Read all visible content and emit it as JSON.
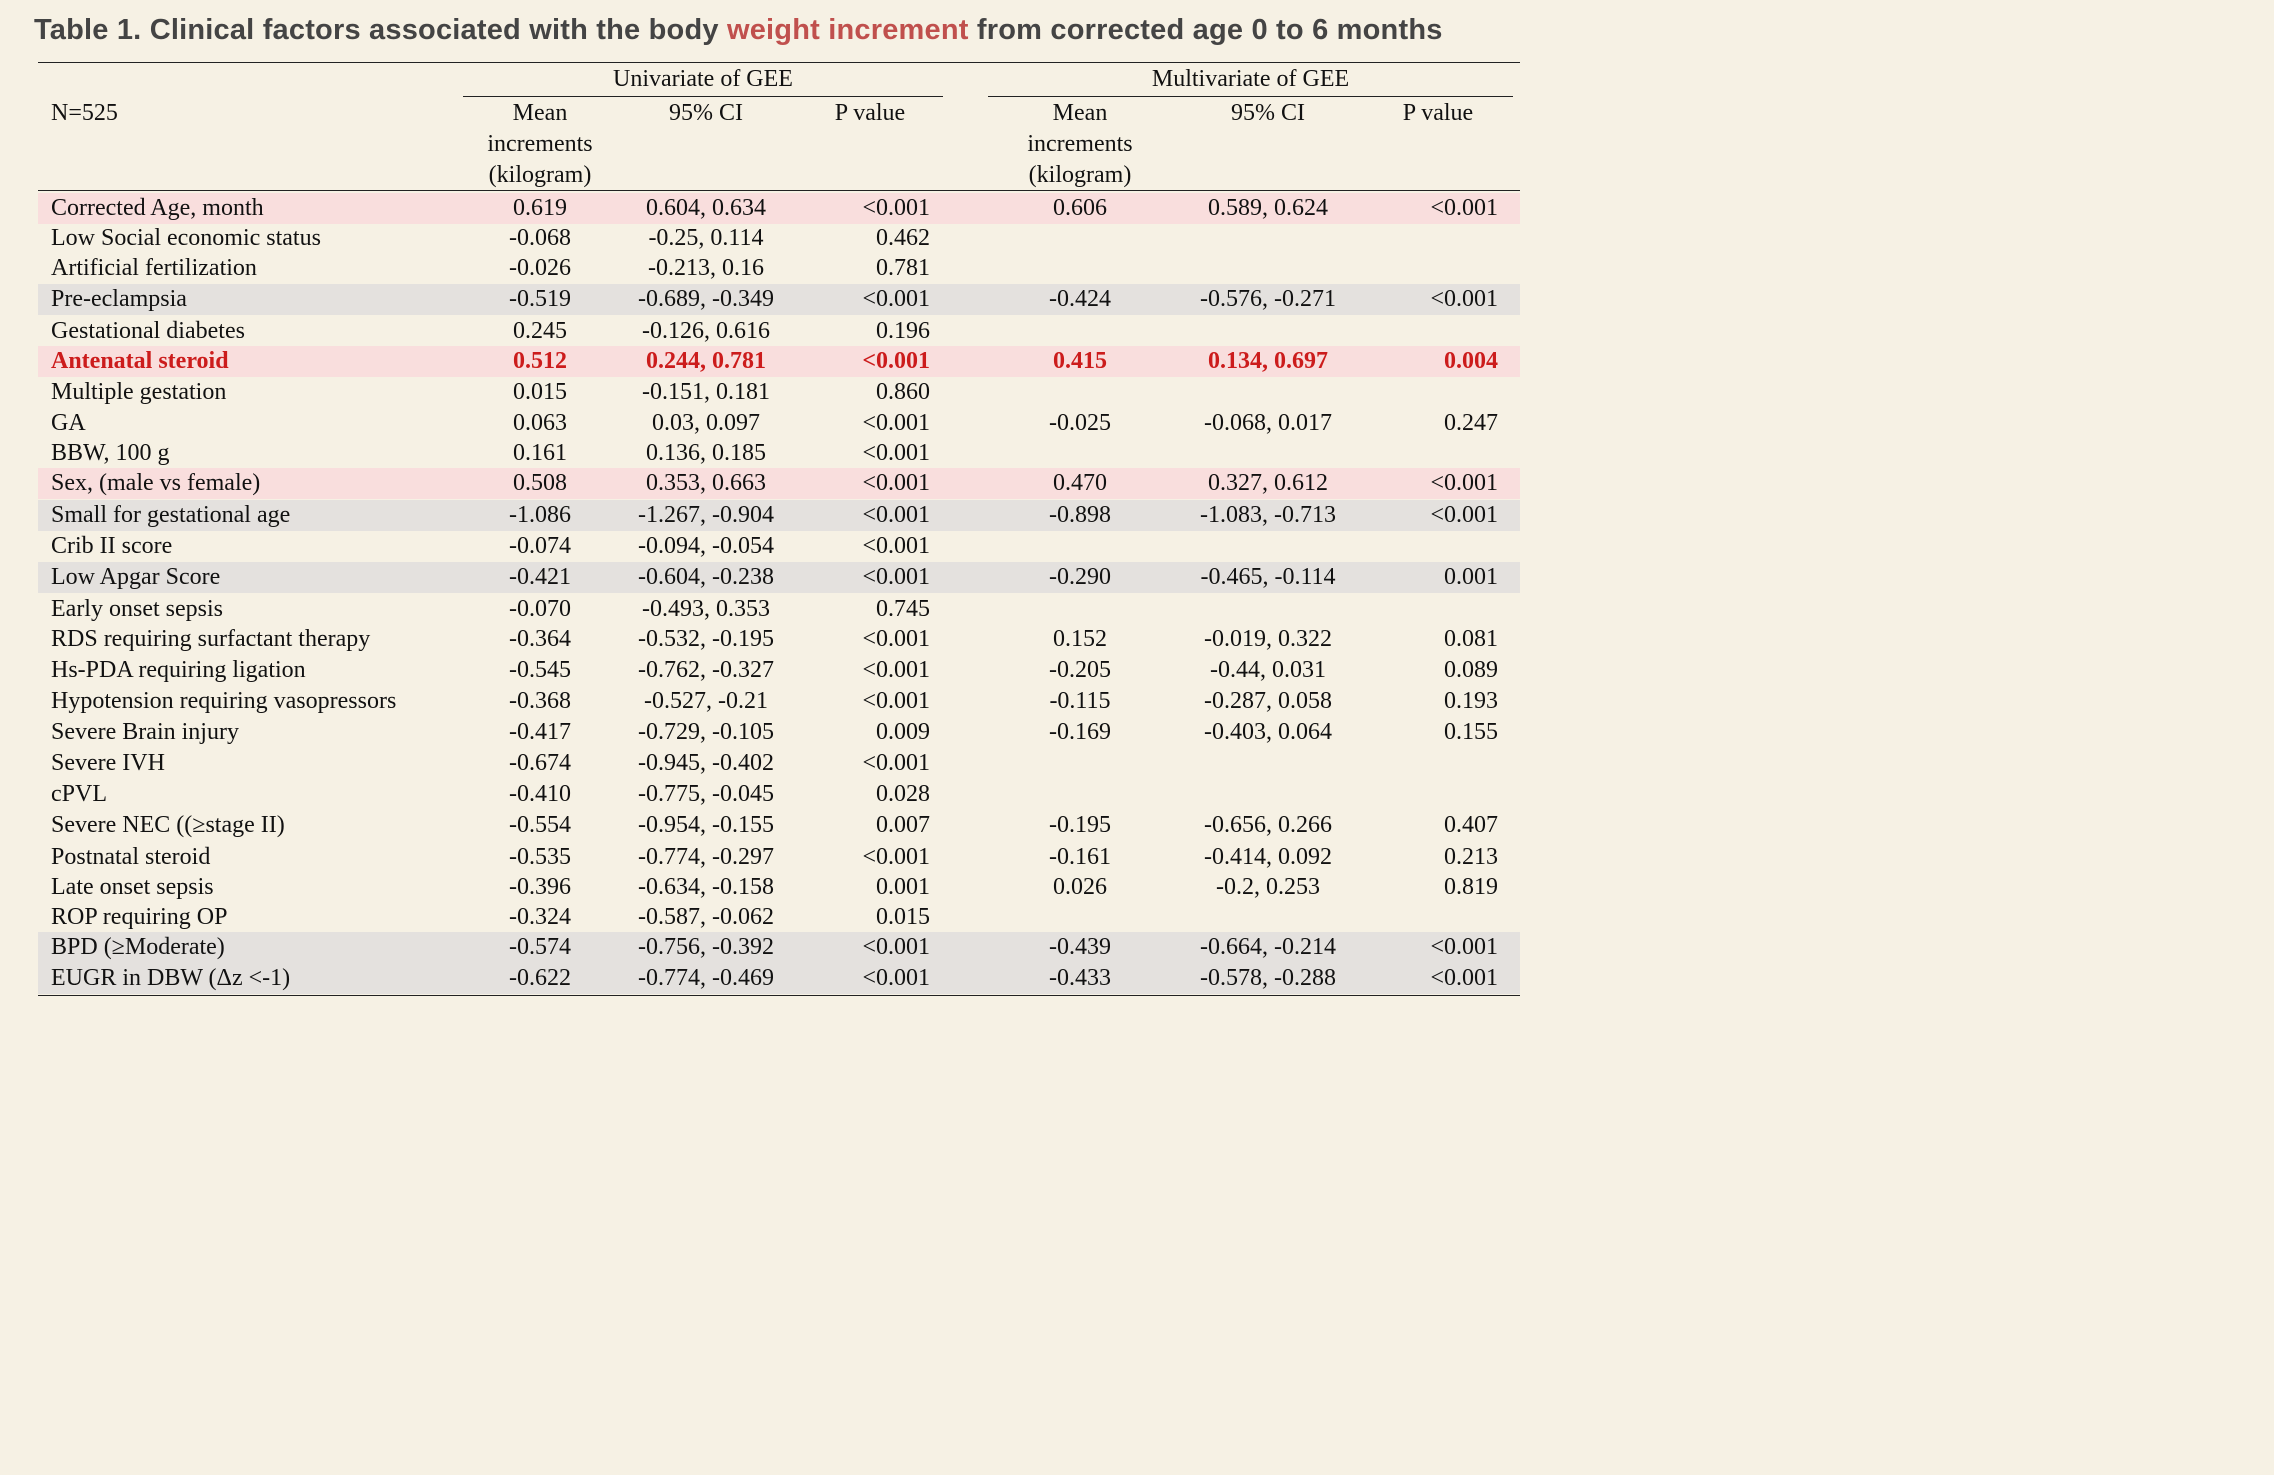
{
  "title": {
    "prefix": "Table 1. Clinical factors associated with the body ",
    "highlight": "weight increment",
    "suffix": " from corrected age 0 to 6 months"
  },
  "colors": {
    "highlight": "#c0504d",
    "pink_row": "#f9dedd",
    "gray_row": "#e4e1de",
    "bold_row": "#cc1c1c"
  },
  "header": {
    "n_label": "N=525",
    "univariate": "Univariate of GEE",
    "multivariate": "Multivariate of GEE",
    "mean": [
      "Mean",
      "increments",
      "(kilogram)"
    ],
    "ci": "95% CI",
    "p": "P value"
  },
  "rows": [
    {
      "label": "Corrected Age, month",
      "u_mean": "0.619",
      "u_ci": "0.604, 0.634",
      "u_p": "<0.001",
      "m_mean": "0.606",
      "m_ci": "0.589, 0.624",
      "m_p": "<0.001",
      "style": "pink"
    },
    {
      "label": "Low Social economic status",
      "u_mean": "-0.068",
      "u_ci": "-0.25, 0.114",
      "u_p": "0.462",
      "m_mean": "",
      "m_ci": "",
      "m_p": "",
      "style": ""
    },
    {
      "label": "Artificial fertilization",
      "u_mean": "-0.026",
      "u_ci": "-0.213, 0.16",
      "u_p": "0.781",
      "m_mean": "",
      "m_ci": "",
      "m_p": "",
      "style": ""
    },
    {
      "label": "Pre-eclampsia",
      "u_mean": "-0.519",
      "u_ci": "-0.689, -0.349",
      "u_p": "<0.001",
      "m_mean": "-0.424",
      "m_ci": "-0.576, -0.271",
      "m_p": "<0.001",
      "style": "gray"
    },
    {
      "label": "Gestational diabetes",
      "u_mean": "0.245",
      "u_ci": "-0.126, 0.616",
      "u_p": "0.196",
      "m_mean": "",
      "m_ci": "",
      "m_p": "",
      "style": ""
    },
    {
      "label": "Antenatal steroid",
      "u_mean": "0.512",
      "u_ci": "0.244, 0.781",
      "u_p": "<0.001",
      "m_mean": "0.415",
      "m_ci": "0.134, 0.697",
      "m_p": "0.004",
      "style": "pink bold"
    },
    {
      "label": "Multiple gestation",
      "u_mean": "0.015",
      "u_ci": "-0.151, 0.181",
      "u_p": "0.860",
      "m_mean": "",
      "m_ci": "",
      "m_p": "",
      "style": ""
    },
    {
      "label": "GA",
      "u_mean": "0.063",
      "u_ci": "0.03, 0.097",
      "u_p": "<0.001",
      "m_mean": "-0.025",
      "m_ci": "-0.068, 0.017",
      "m_p": "0.247",
      "style": ""
    },
    {
      "label": "BBW, 100 g",
      "u_mean": "0.161",
      "u_ci": "0.136, 0.185",
      "u_p": "<0.001",
      "m_mean": "",
      "m_ci": "",
      "m_p": "",
      "style": ""
    },
    {
      "label": "Sex, (male vs female)",
      "u_mean": "0.508",
      "u_ci": "0.353, 0.663",
      "u_p": "<0.001",
      "m_mean": "0.470",
      "m_ci": "0.327, 0.612",
      "m_p": "<0.001",
      "style": "pink"
    },
    {
      "label": "Small for gestational age",
      "u_mean": "-1.086",
      "u_ci": "-1.267, -0.904",
      "u_p": "<0.001",
      "m_mean": "-0.898",
      "m_ci": "-1.083, -0.713",
      "m_p": "<0.001",
      "style": "gray"
    },
    {
      "label": "Crib II score",
      "u_mean": "-0.074",
      "u_ci": "-0.094, -0.054",
      "u_p": "<0.001",
      "m_mean": "",
      "m_ci": "",
      "m_p": "",
      "style": ""
    },
    {
      "label": "Low Apgar Score",
      "u_mean": "-0.421",
      "u_ci": "-0.604, -0.238",
      "u_p": "<0.001",
      "m_mean": "-0.290",
      "m_ci": "-0.465, -0.114",
      "m_p": "0.001",
      "style": "gray"
    },
    {
      "label": "Early onset sepsis",
      "u_mean": "-0.070",
      "u_ci": "-0.493, 0.353",
      "u_p": "0.745",
      "m_mean": "",
      "m_ci": "",
      "m_p": "",
      "style": ""
    },
    {
      "label": "RDS requiring surfactant therapy",
      "u_mean": "-0.364",
      "u_ci": "-0.532, -0.195",
      "u_p": "<0.001",
      "m_mean": "0.152",
      "m_ci": "-0.019, 0.322",
      "m_p": "0.081",
      "style": ""
    },
    {
      "label": "Hs-PDA requiring ligation",
      "u_mean": "-0.545",
      "u_ci": "-0.762, -0.327",
      "u_p": "<0.001",
      "m_mean": "-0.205",
      "m_ci": "-0.44, 0.031",
      "m_p": "0.089",
      "style": ""
    },
    {
      "label": "Hypotension requiring vasopressors",
      "u_mean": "-0.368",
      "u_ci": "-0.527, -0.21",
      "u_p": "<0.001",
      "m_mean": "-0.115",
      "m_ci": "-0.287, 0.058",
      "m_p": "0.193",
      "style": ""
    },
    {
      "label": "Severe Brain injury",
      "u_mean": "-0.417",
      "u_ci": "-0.729, -0.105",
      "u_p": "0.009",
      "m_mean": "-0.169",
      "m_ci": "-0.403, 0.064",
      "m_p": "0.155",
      "style": ""
    },
    {
      "label": "Severe IVH",
      "u_mean": "-0.674",
      "u_ci": "-0.945, -0.402",
      "u_p": "<0.001",
      "m_mean": "",
      "m_ci": "",
      "m_p": "",
      "style": ""
    },
    {
      "label": "cPVL",
      "u_mean": "-0.410",
      "u_ci": "-0.775, -0.045",
      "u_p": "0.028",
      "m_mean": "",
      "m_ci": "",
      "m_p": "",
      "style": ""
    },
    {
      "label": "Severe NEC ((≥stage II)",
      "u_mean": "-0.554",
      "u_ci": "-0.954, -0.155",
      "u_p": "0.007",
      "m_mean": "-0.195",
      "m_ci": "-0.656, 0.266",
      "m_p": "0.407",
      "style": ""
    },
    {
      "label": "Postnatal steroid",
      "u_mean": "-0.535",
      "u_ci": "-0.774, -0.297",
      "u_p": "<0.001",
      "m_mean": "-0.161",
      "m_ci": "-0.414, 0.092",
      "m_p": "0.213",
      "style": ""
    },
    {
      "label": "Late onset sepsis",
      "u_mean": "-0.396",
      "u_ci": "-0.634, -0.158",
      "u_p": "0.001",
      "m_mean": "0.026",
      "m_ci": "-0.2, 0.253",
      "m_p": "0.819",
      "style": ""
    },
    {
      "label": "ROP requiring OP",
      "u_mean": "-0.324",
      "u_ci": "-0.587, -0.062",
      "u_p": "0.015",
      "m_mean": "",
      "m_ci": "",
      "m_p": "",
      "style": ""
    },
    {
      "label": "BPD (≥Moderate)",
      "u_mean": "-0.574",
      "u_ci": "-0.756, -0.392",
      "u_p": "<0.001",
      "m_mean": "-0.439",
      "m_ci": "-0.664, -0.214",
      "m_p": "<0.001",
      "style": "gray"
    },
    {
      "label": "EUGR in DBW (Δz <-1)",
      "u_mean": "-0.622",
      "u_ci": "-0.774, -0.469",
      "u_p": "<0.001",
      "m_mean": "-0.433",
      "m_ci": "-0.578, -0.288",
      "m_p": "<0.001",
      "style": "gray"
    }
  ]
}
